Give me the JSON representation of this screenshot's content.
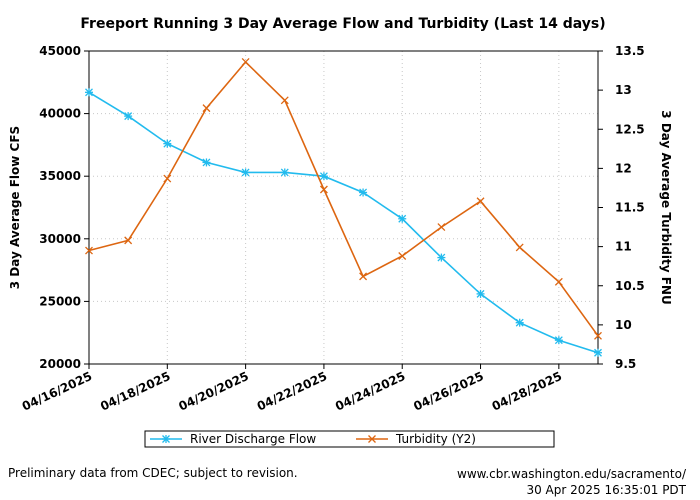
{
  "chart_data": {
    "type": "line",
    "title": "Freeport Running 3 Day Average Flow and Turbidity (Last 14 days)",
    "ylabel": "3 Day Average Flow CFS",
    "y2label": "3 Day Average Turbidity FNU",
    "xlabel": "",
    "x_ticks": [
      "04/16/2025",
      "04/18/2025",
      "04/20/2025",
      "04/22/2025",
      "04/24/2025",
      "04/26/2025",
      "04/28/2025"
    ],
    "x_tick_days": [
      0,
      2,
      4,
      6,
      8,
      10,
      12
    ],
    "x_range_days": [
      0,
      13
    ],
    "ylim": [
      20000,
      45000
    ],
    "y_ticks": [
      20000,
      25000,
      30000,
      35000,
      40000,
      45000
    ],
    "y2lim": [
      9.5,
      13.5
    ],
    "y2_ticks": [
      "9.5",
      "10",
      "10.5",
      "11",
      "11.5",
      "12",
      "12.5",
      "13",
      "13.5"
    ],
    "grid": true,
    "legend_position": "bottom",
    "series": [
      {
        "name": "River Discharge Flow",
        "axis": "y",
        "color": "#22bbee",
        "marker": "star",
        "x": [
          0,
          1,
          2,
          3,
          4,
          5,
          6,
          7,
          8,
          9,
          10,
          11,
          12,
          13
        ],
        "values": [
          41700,
          39800,
          37600,
          36100,
          35300,
          35300,
          35000,
          33700,
          31600,
          28500,
          25600,
          23300,
          21900,
          20900
        ]
      },
      {
        "name": "Turbidity (Y2)",
        "axis": "y2",
        "color": "#dd6611",
        "marker": "x",
        "x": [
          0,
          1,
          2,
          3,
          4,
          5,
          6,
          7,
          8,
          9,
          10,
          11,
          12,
          13
        ],
        "values": [
          10.95,
          11.08,
          11.87,
          12.77,
          13.36,
          12.87,
          11.73,
          10.62,
          10.88,
          11.25,
          11.58,
          10.99,
          10.55,
          9.86
        ]
      }
    ]
  },
  "footer": {
    "note": "Preliminary data from CDEC; subject to revision.",
    "url": "www.cbr.washington.edu/sacramento/",
    "timestamp": "30 Apr 2025 16:35:01 PDT"
  }
}
